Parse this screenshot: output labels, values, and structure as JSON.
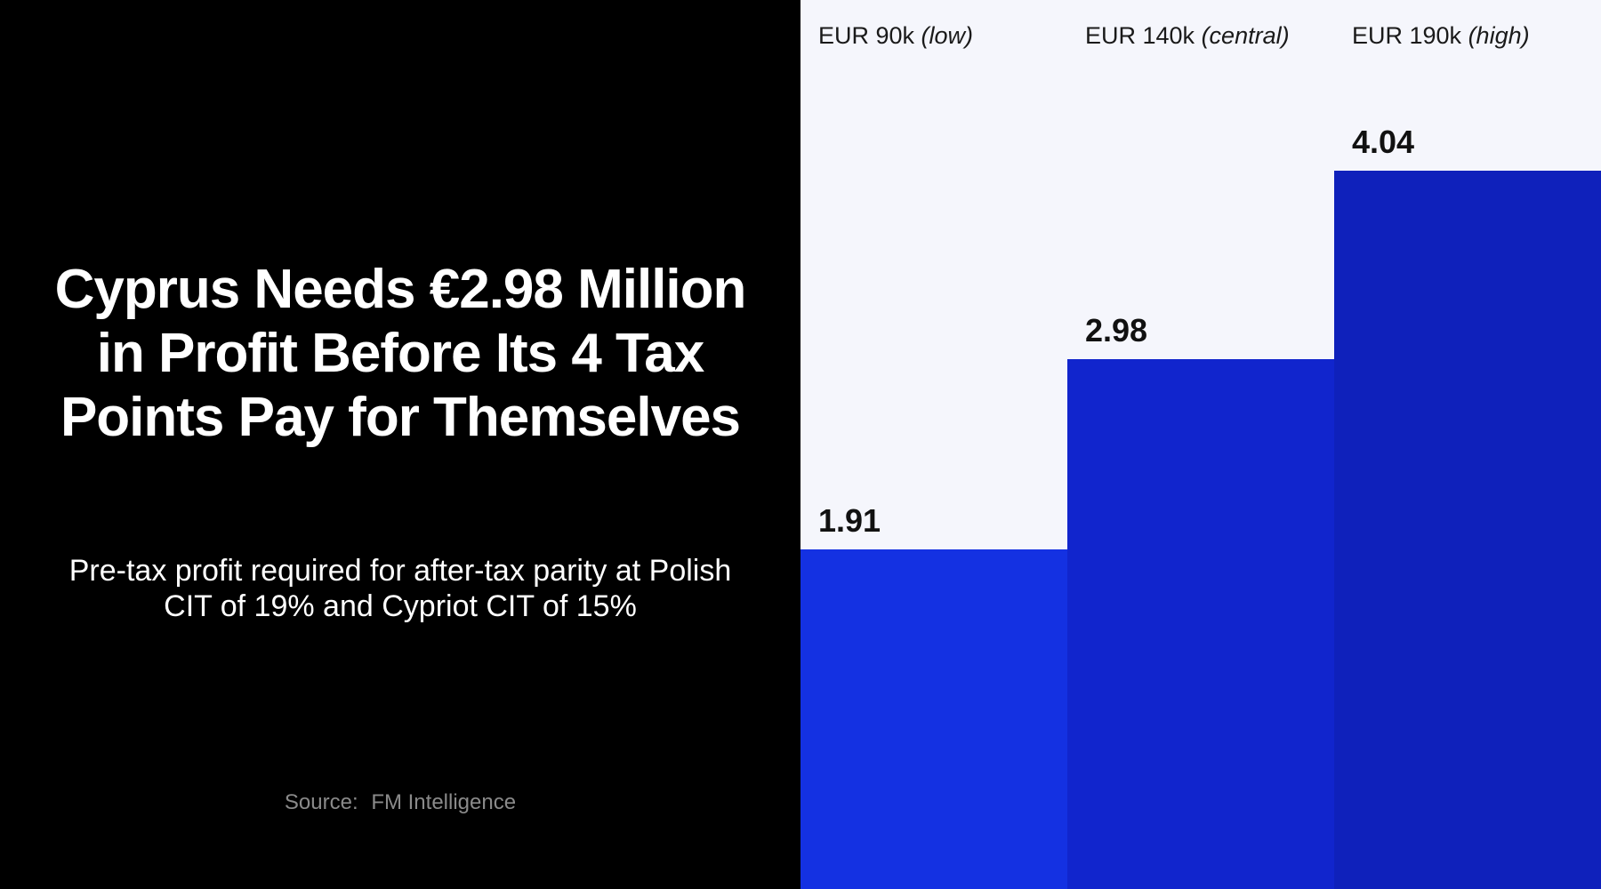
{
  "title": "Cyprus Needs €2.98 Million in Profit Before Its 4 Tax Points Pay for Themselves",
  "subtitle": "Pre-tax profit required for after-tax parity at Polish CIT of 19% and Cypriot CIT of 15%",
  "source": {
    "label": "Source:",
    "value": "FM Intelligence"
  },
  "colors": {
    "background_left": "#000000",
    "background_right": "#f5f6fc",
    "bars": [
      "#1431e2",
      "#1125cd",
      "#0f21bb"
    ]
  },
  "chart_data": {
    "type": "bar",
    "categories": [
      "EUR 90k",
      "EUR 140k",
      "EUR 190k"
    ],
    "category_notes": [
      "(low)",
      "(central)",
      "(high)"
    ],
    "values": [
      1.91,
      2.98,
      4.04
    ],
    "value_labels": [
      "1.91",
      "2.98",
      "4.04"
    ],
    "ylim": [
      0,
      5
    ],
    "grid": false,
    "legend": "none"
  }
}
